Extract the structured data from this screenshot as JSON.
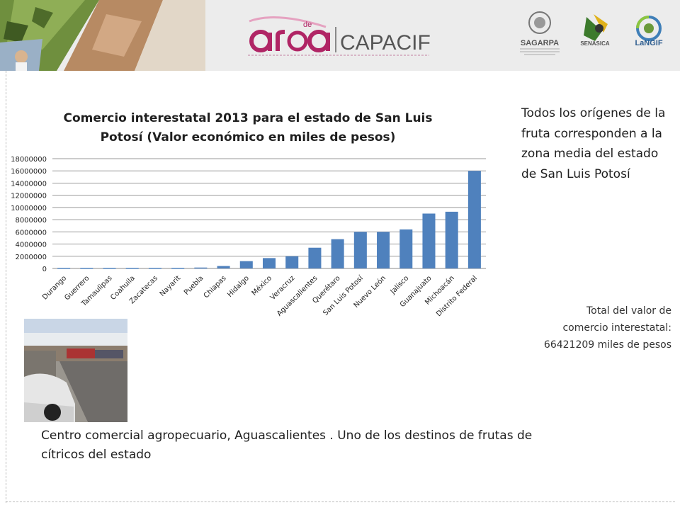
{
  "header": {
    "brand_a": "area",
    "brand_de": "de",
    "brand_name": "CAPACIF",
    "logos": [
      {
        "icon": "sagarpa-seal-icon",
        "label": "SAGARPA"
      },
      {
        "icon": "senasica-icon",
        "label": "SENASICA"
      },
      {
        "icon": "langif-icon",
        "label": "LaNGIF"
      }
    ]
  },
  "note": "Todos los orígenes de la fruta corresponden a la zona media del estado  de San Luis Potosí",
  "total": {
    "line1": "Total del valor de",
    "line2": "comercio interestatal:",
    "line3": "66421209 miles de pesos"
  },
  "caption": "Centro  comercial agropecuario, Aguascalientes . Uno  de los destinos de frutas de cítricos del estado",
  "chart_data": {
    "type": "bar",
    "title": "Comercio interestatal 2013 para el estado de San Luis Potosí (Valor económico en miles de pesos)",
    "xlabel": "",
    "ylabel": "",
    "categories": [
      "Durango",
      "Guerrero",
      "Tamaulipas",
      "Coahuila",
      "Zacatecas",
      "Nayarit",
      "Puebla",
      "Chiapas",
      "Hidalgo",
      "México",
      "Veracruz",
      "Aguascalientes",
      "Querétaro",
      "San Luis Potosí",
      "Nuevo León",
      "Jalisco",
      "Guanajuato",
      "Michoacán",
      "Distrito Federal"
    ],
    "values": [
      100000,
      100000,
      100000,
      100000,
      100000,
      100000,
      150000,
      400000,
      1200000,
      1700000,
      2000000,
      3400000,
      4800000,
      6000000,
      6000000,
      6400000,
      9000000,
      9300000,
      16000000
    ],
    "ylim": [
      0,
      18000000
    ],
    "yticks": [
      "0",
      "2000000",
      "4000000",
      "6000000",
      "8000000",
      "10000000",
      "12000000",
      "14000000",
      "16000000",
      "18000000"
    ],
    "grid": true,
    "legend": "none",
    "bar_color": "#4f81bd"
  }
}
